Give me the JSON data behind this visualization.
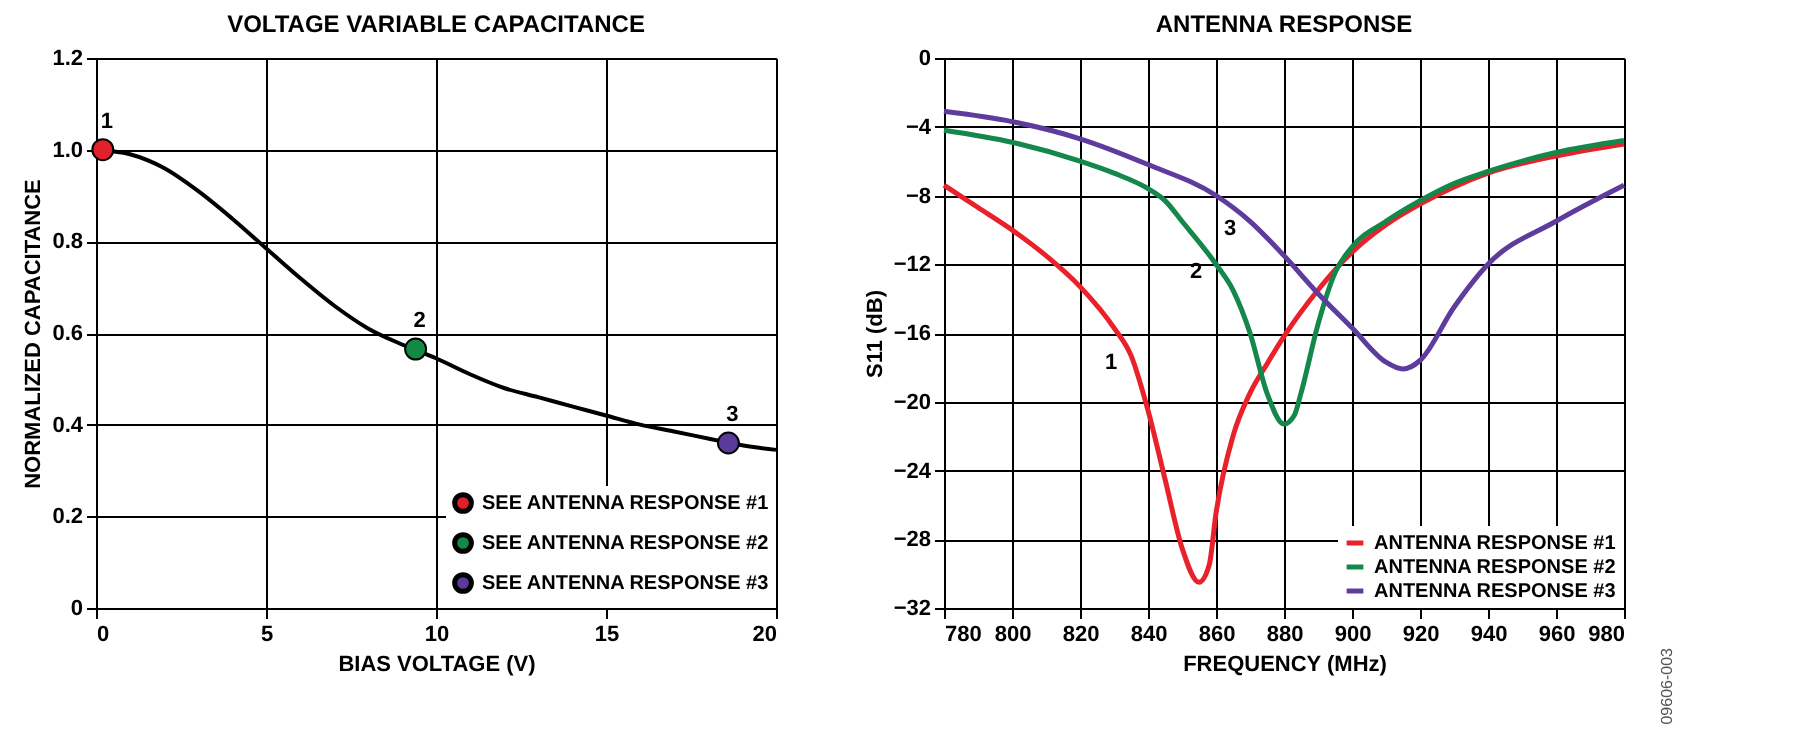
{
  "chart_data": [
    {
      "type": "line",
      "title": "VOLTAGE VARIABLE CAPACITANCE",
      "xlabel": "BIAS VOLTAGE (V)",
      "ylabel": "NORMALIZED CAPACITANCE",
      "xlim": [
        0,
        20
      ],
      "xticks": [
        0,
        5,
        10,
        15,
        20
      ],
      "ylim": [
        0,
        1.2
      ],
      "yticks": [
        {
          "value": 0,
          "label": "0"
        },
        {
          "value": 0.2,
          "label": "0.2"
        },
        {
          "value": 0.4,
          "label": "0.4"
        },
        {
          "value": 0.6,
          "label": "0.6"
        },
        {
          "value": 0.8,
          "label": "0.8"
        },
        {
          "value": 1.0,
          "label": "1.0"
        },
        {
          "value": 1.2,
          "label": "1.2"
        }
      ],
      "grid": true,
      "legend": "bottom right",
      "series": [
        {
          "type": "line",
          "color": "#000000",
          "x": [
            0,
            1,
            2,
            3,
            4,
            5,
            6,
            7,
            8,
            9,
            10,
            11,
            12,
            13,
            14,
            15,
            16,
            17,
            18,
            19,
            20
          ],
          "values": [
            1.0,
            0.99,
            0.96,
            0.91,
            0.85,
            0.785,
            0.72,
            0.66,
            0.61,
            0.575,
            0.545,
            0.51,
            0.48,
            0.46,
            0.44,
            0.42,
            0.4,
            0.385,
            0.37,
            0.355,
            0.345
          ]
        },
        {
          "type": "scatter",
          "name": "SEE ANTENNA RESPONSE #1",
          "color": "#e0202a",
          "x": [
            0.2
          ],
          "values": [
            1.0
          ]
        },
        {
          "type": "scatter",
          "name": "SEE ANTENNA RESPONSE #2",
          "color": "#138a43",
          "x": [
            9.4
          ],
          "values": [
            0.565
          ]
        },
        {
          "type": "scatter",
          "name": "SEE ANTENNA RESPONSE #3",
          "color": "#5b3a99",
          "x": [
            18.6
          ],
          "values": [
            0.36
          ]
        }
      ],
      "annotations": [
        {
          "text": "1",
          "x": 0.2,
          "y": 1.0
        },
        {
          "text": "2",
          "x": 9.4,
          "y": 0.565
        },
        {
          "text": "3",
          "x": 18.6,
          "y": 0.36
        }
      ]
    },
    {
      "type": "line",
      "title": "ANTENNA RESPONSE",
      "xlabel": "FREQUENCY (MHz)",
      "ylabel": "S11 (dB)",
      "xlim": [
        780,
        980
      ],
      "xticks": [
        780,
        800,
        820,
        840,
        860,
        880,
        900,
        920,
        940,
        960,
        980
      ],
      "ylim": [
        -32,
        0
      ],
      "yticks": [
        -32,
        -28,
        -24,
        -20,
        -16,
        -12,
        -8,
        -4,
        0
      ],
      "grid": true,
      "legend": "bottom right",
      "series": [
        {
          "name": "ANTENNA RESPONSE #1",
          "color": "#e8212b",
          "x": [
            780,
            790,
            800,
            810,
            820,
            830,
            835,
            840,
            845,
            850,
            855,
            858,
            860,
            865,
            870,
            875,
            880,
            890,
            900,
            910,
            920,
            930,
            940,
            960,
            980
          ],
          "values": [
            -7.4,
            -8.7,
            -10,
            -11.5,
            -13.3,
            -15.7,
            -17.3,
            -20.5,
            -24.5,
            -28.5,
            -30.5,
            -29.5,
            -26.5,
            -22,
            -19.5,
            -17.8,
            -16.2,
            -13.5,
            -11.3,
            -9.7,
            -8.5,
            -7.5,
            -6.7,
            -5.7,
            -5.0
          ]
        },
        {
          "name": "ANTENNA RESPONSE #2",
          "color": "#13884a",
          "x": [
            780,
            800,
            820,
            830,
            840,
            845,
            850,
            860,
            865,
            870,
            875,
            880,
            883,
            885,
            890,
            895,
            900,
            910,
            920,
            930,
            940,
            960,
            980
          ],
          "values": [
            -4.2,
            -4.9,
            -6,
            -6.7,
            -7.6,
            -8.3,
            -9.5,
            -12,
            -13.5,
            -16,
            -19.5,
            -21.3,
            -20.8,
            -19.5,
            -15.5,
            -12.5,
            -11,
            -9.5,
            -8.3,
            -7.3,
            -6.6,
            -5.5,
            -4.8
          ]
        },
        {
          "name": "ANTENNA RESPONSE #3",
          "color": "#5e3c9e",
          "x": [
            780,
            800,
            820,
            840,
            860,
            870,
            880,
            890,
            900,
            910,
            915,
            920,
            930,
            940,
            960,
            980
          ],
          "values": [
            -3.1,
            -3.7,
            -4.7,
            -6.2,
            -8,
            -9.5,
            -11.5,
            -13.7,
            -15.7,
            -17.7,
            -18.1,
            -17.6,
            -14.5,
            -12,
            -9.5,
            -7.4
          ]
        }
      ],
      "annotations": [
        {
          "text": "1",
          "x": 835,
          "y": -17.3
        },
        {
          "text": "2",
          "x": 860,
          "y": -12
        },
        {
          "text": "3",
          "x": 870,
          "y": -9.5
        },
        "09606-003"
      ]
    }
  ]
}
